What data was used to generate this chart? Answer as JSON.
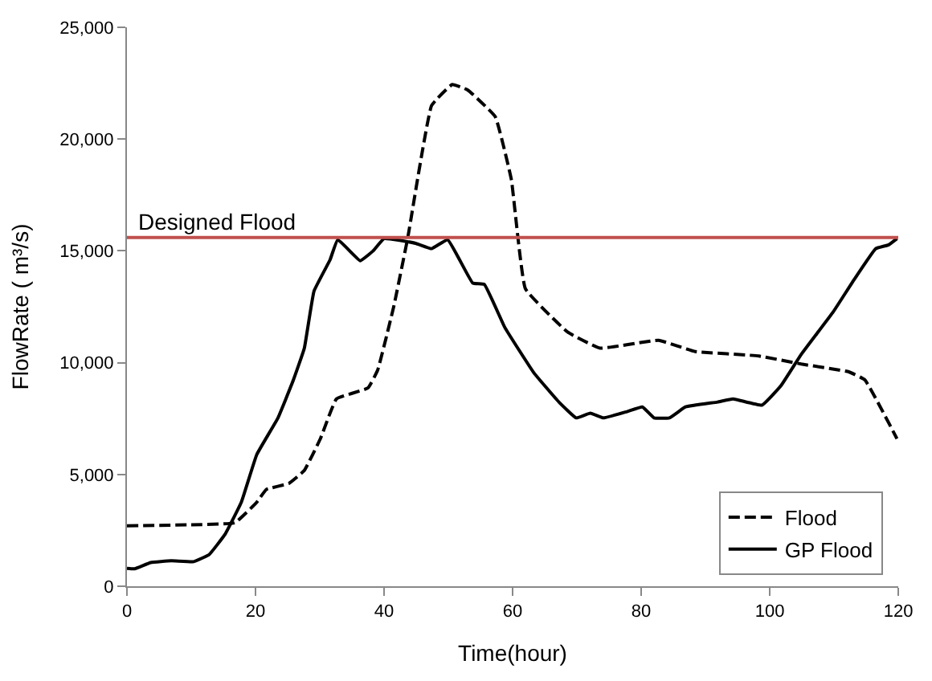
{
  "chart_data": {
    "type": "line",
    "xlabel": "Time(hour)",
    "ylabel": "FlowRate ( m³/s)",
    "xlim": [
      0,
      120
    ],
    "xticks": [
      0,
      20,
      40,
      60,
      80,
      100,
      120
    ],
    "ylim": [
      0,
      25000
    ],
    "yticks": [
      {
        "value": 0,
        "label": "0"
      },
      {
        "value": 5000,
        "label": "5,000"
      },
      {
        "value": 10000,
        "label": "10,000"
      },
      {
        "value": 15000,
        "label": "15,000"
      },
      {
        "value": 20000,
        "label": "20,000"
      },
      {
        "value": 25000,
        "label": "25,000"
      }
    ],
    "legend": "bottom right",
    "marker": "none",
    "ref_lines": [
      {
        "axis": "y",
        "value": 15600,
        "label": "Designed Flood",
        "color": "#c0504d",
        "line_style": "solid"
      }
    ],
    "series": [
      {
        "name": "Flood",
        "color": "#000000",
        "line_style": "dashed",
        "x": [
          0,
          10,
          16.8,
          20.2,
          21.7,
          25.2,
          27.6,
          30.1,
          32.6,
          37.5,
          39,
          41.5,
          43.7,
          47.4,
          50.6,
          53,
          57.3,
          59.8,
          62,
          68.6,
          73.6,
          82.7,
          88.4,
          98.3,
          104.9,
          112.3,
          114.8,
          119.8
        ],
        "values": [
          2700,
          2750,
          2840,
          3760,
          4330,
          4600,
          5180,
          6600,
          8380,
          8870,
          9660,
          12500,
          15600,
          21500,
          22440,
          22200,
          21000,
          18200,
          13300,
          11360,
          10650,
          11000,
          10500,
          10300,
          9940,
          9590,
          9230,
          6600
        ]
      },
      {
        "name": "GP Flood",
        "color": "#000000",
        "line_style": "solid",
        "x": [
          0,
          1.2,
          3.7,
          6.9,
          10.4,
          12.8,
          15.3,
          17.8,
          20.2,
          23.5,
          25.9,
          27.6,
          29.1,
          31.6,
          32.8,
          36.3,
          38.3,
          40,
          44.9,
          47.4,
          49.9,
          53.8,
          55.6,
          58.8,
          63.3,
          67.2,
          69.9,
          72.1,
          74.1,
          77.8,
          80.2,
          82,
          84.4,
          86.9,
          91.9,
          94.3,
          98.8,
          101.7,
          104.9,
          109.9,
          113.1,
          116.5,
          118.5,
          119.8
        ],
        "values": [
          800,
          780,
          1060,
          1140,
          1100,
          1420,
          2340,
          3760,
          5890,
          7530,
          9230,
          10650,
          13200,
          14600,
          15500,
          14560,
          15000,
          15550,
          15340,
          15100,
          15500,
          13560,
          13500,
          11570,
          9550,
          8240,
          7530,
          7740,
          7530,
          7810,
          8020,
          7530,
          7530,
          8020,
          8240,
          8380,
          8100,
          8950,
          10370,
          12280,
          13700,
          15100,
          15270,
          15550
        ]
      }
    ]
  }
}
